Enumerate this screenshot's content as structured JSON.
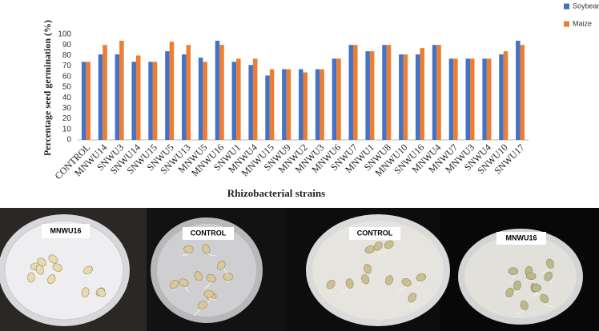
{
  "chart_data": {
    "type": "bar",
    "x_label": "Rhizobacterial strains",
    "y_label": "Percentage seed germination (%)",
    "categories": [
      "CONTROL",
      "MNWU14",
      "SNWU3",
      "SNWU14",
      "SNWU15",
      "SNWU5",
      "SNWU13",
      "MNWU5",
      "MNWU16",
      "SNWU1",
      "MNWU4",
      "MNWU15",
      "SNWU9",
      "MNWU2",
      "MNWU3",
      "MNWU6",
      "SNWU7",
      "MNWU1",
      "SNWU8",
      "MNWU10",
      "SNWU16",
      "MNWU4",
      "MNWU7",
      "MNWU3",
      "SNWU4",
      "SNWU10",
      "SNWU17"
    ],
    "series": [
      {
        "name": "Soybean",
        "color": "#4472c4",
        "values": [
          74,
          81,
          81,
          74,
          74,
          84,
          81,
          78,
          94,
          74,
          71,
          61,
          67,
          67,
          67,
          77,
          90,
          84,
          90,
          81,
          81,
          90,
          77,
          77,
          77,
          81,
          94
        ]
      },
      {
        "name": "Maize",
        "color": "#ed7d31",
        "values": [
          74,
          90,
          94,
          80,
          74,
          93,
          90,
          74,
          90,
          77,
          77,
          67,
          67,
          64,
          67,
          77,
          90,
          84,
          90,
          81,
          87,
          90,
          77,
          77,
          77,
          84,
          90
        ]
      }
    ],
    "ylim": [
      0,
      100
    ],
    "yticks": [
      0,
      10,
      20,
      30,
      40,
      50,
      60,
      70,
      80,
      90,
      100
    ],
    "grid": false,
    "legend": "top-right"
  },
  "photos": {
    "labels": [
      "MNWU16",
      "CONTROL",
      "CONTROL",
      "MNWU16"
    ]
  }
}
